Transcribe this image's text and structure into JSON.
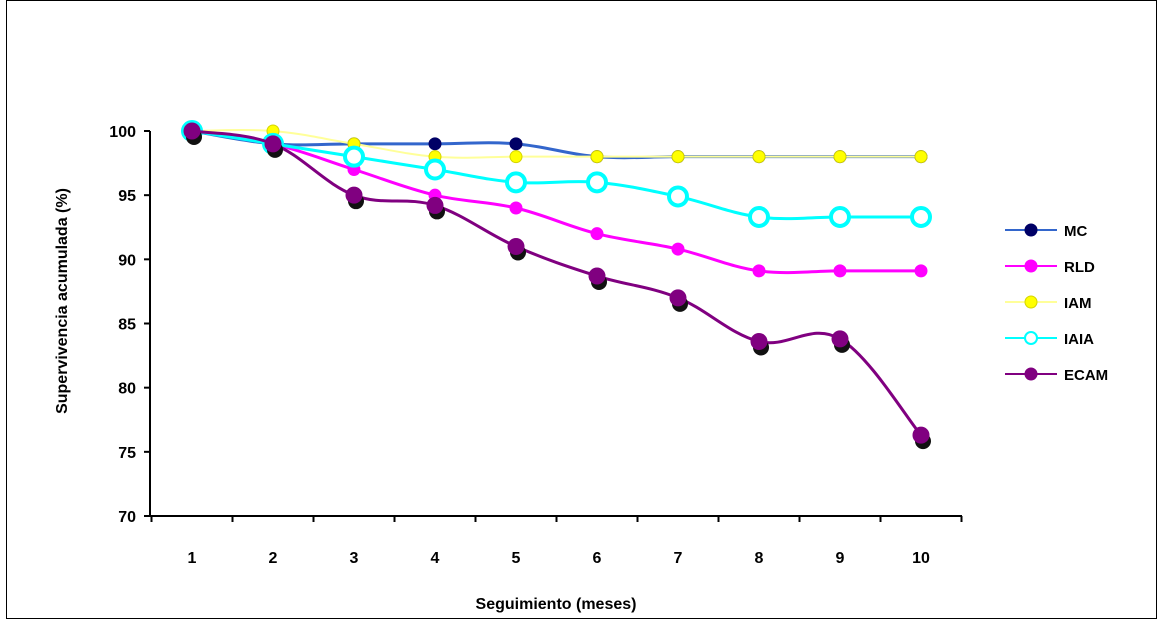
{
  "chart_data": {
    "type": "line",
    "title": "",
    "xlabel": "Seguimiento (meses)",
    "ylabel": "Supervivencia acumulada (%)",
    "x": [
      1,
      2,
      3,
      4,
      5,
      6,
      7,
      8,
      9,
      10
    ],
    "xticks": [
      "1",
      "2",
      "3",
      "4",
      "5",
      "6",
      "7",
      "8",
      "9",
      "10"
    ],
    "ylim": [
      70,
      100
    ],
    "yticks": [
      "70",
      "75",
      "80",
      "85",
      "90",
      "95",
      "100"
    ],
    "grid": false,
    "legend_position": "right",
    "series": [
      {
        "name": "MC",
        "color": "#3366cc",
        "marker_fill": "#000066",
        "values": [
          100,
          99,
          99,
          99,
          99,
          98,
          98,
          98,
          98,
          98
        ]
      },
      {
        "name": "RLD",
        "color": "#ff00ff",
        "marker_fill": "#ff00ff",
        "values": [
          100,
          99,
          97,
          95,
          94,
          92,
          90.8,
          89.1,
          89.1,
          89.1
        ]
      },
      {
        "name": "IAM",
        "color": "#ffff99",
        "marker_fill": "#ffff00",
        "values": [
          100,
          100,
          99,
          98,
          98,
          98,
          98,
          98,
          98,
          98
        ]
      },
      {
        "name": "IAIA",
        "color": "#00ffff",
        "marker_fill": "#ffffff",
        "values": [
          100,
          99,
          98,
          97,
          96,
          96,
          94.9,
          93.3,
          93.3,
          93.3
        ]
      },
      {
        "name": "ECAM",
        "color": "#800080",
        "marker_fill": "#800080",
        "values": [
          100,
          99,
          95,
          94.2,
          91,
          88.7,
          87,
          83.6,
          83.8,
          76.3
        ]
      }
    ]
  }
}
